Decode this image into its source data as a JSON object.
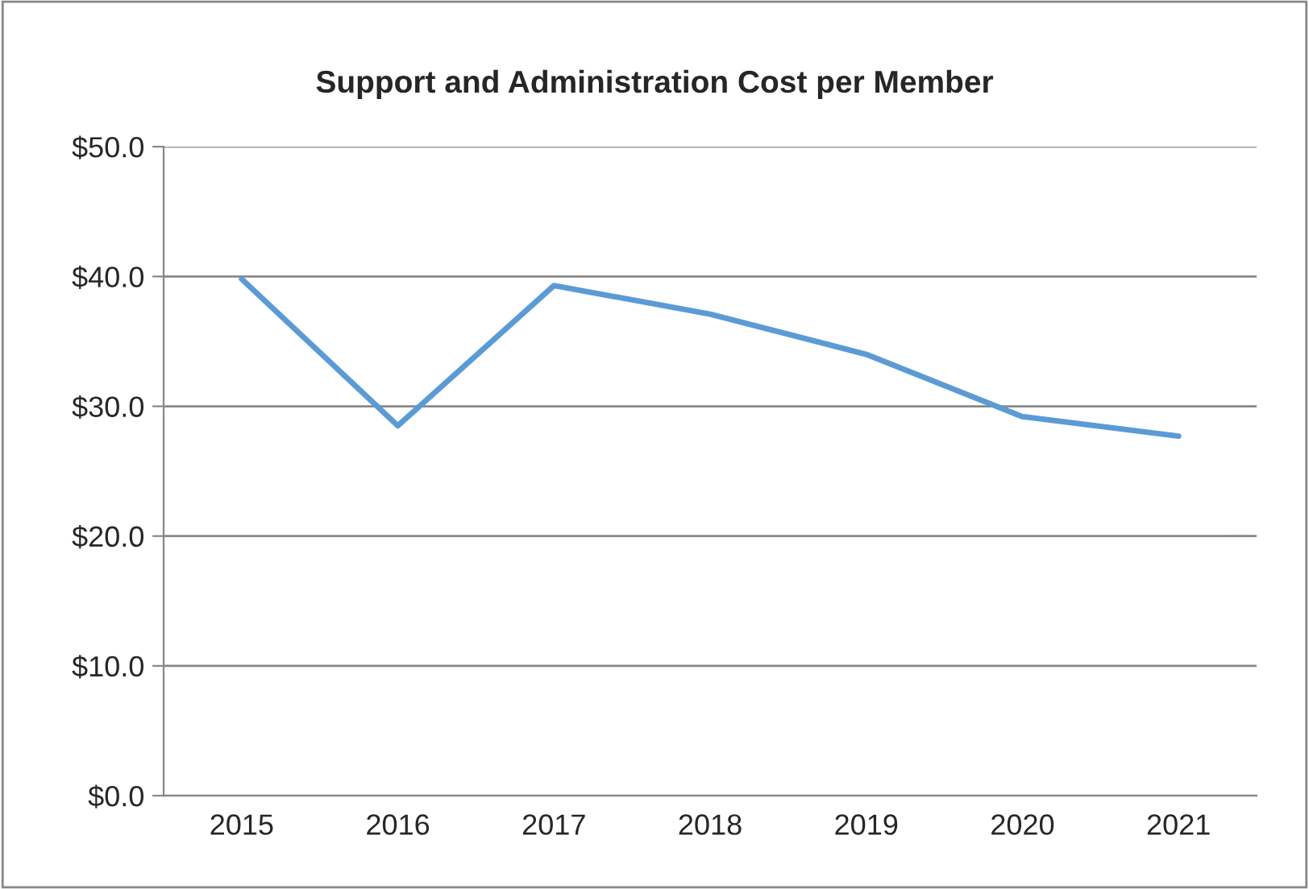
{
  "chart_data": {
    "type": "line",
    "title": "Support and Administration Cost per Member",
    "categories": [
      "2015",
      "2016",
      "2017",
      "2018",
      "2019",
      "2020",
      "2021"
    ],
    "series": [
      {
        "color": "#5b9bd5",
        "values": [
          39.8,
          28.5,
          39.3,
          37.1,
          34.0,
          29.2,
          27.7
        ]
      }
    ],
    "ylim": [
      0,
      50
    ],
    "yticks": [
      {
        "value": 0,
        "label": "$0.0"
      },
      {
        "value": 10,
        "label": "$10.0"
      },
      {
        "value": 20,
        "label": "$20.0"
      },
      {
        "value": 30,
        "label": "$30.0"
      },
      {
        "value": 40,
        "label": "$40.0"
      },
      {
        "value": 50,
        "label": "$50.0"
      }
    ],
    "grid": "y",
    "legend": false,
    "marker": "none",
    "line_style": "solid"
  }
}
